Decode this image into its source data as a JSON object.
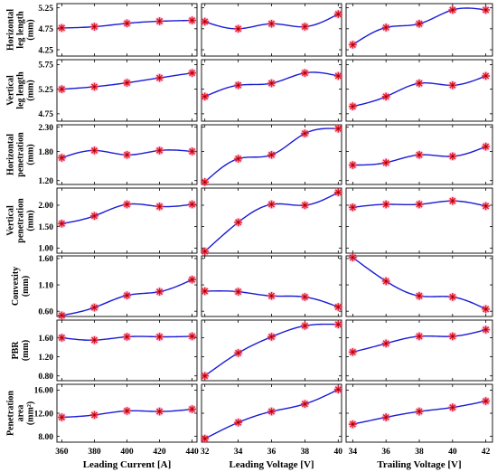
{
  "colors": {
    "curve": "#1a1ad6",
    "marker_red": "#e4232c",
    "marker_halo": "#ff66cc",
    "frame": "#000000"
  },
  "chart_data": {
    "type": "scatter",
    "layout": "grid 7 rows x 3 columns",
    "columns": [
      {
        "xlabel": "Leading Current [A]",
        "x": [
          360,
          380,
          400,
          420,
          440
        ],
        "xticks": [
          "360",
          "380",
          "400",
          "420",
          "440"
        ],
        "xlim": [
          357,
          443
        ]
      },
      {
        "xlabel": "Leading Voltage [V]",
        "x": [
          32,
          34,
          36,
          38,
          40
        ],
        "xticks": [
          "32",
          "34",
          "36",
          "38",
          "40"
        ],
        "xlim": [
          31.8,
          40.2
        ]
      },
      {
        "xlabel": "Trailing Voltage [V]",
        "x": [
          34,
          36,
          38,
          40,
          42
        ],
        "xticks": [
          "34",
          "36",
          "38",
          "40",
          "42"
        ],
        "xlim": [
          33.6,
          42.4
        ]
      }
    ],
    "rows": [
      {
        "ylabel": [
          "Horizontal",
          "leg length",
          "(mm)"
        ],
        "yticks": [
          "4.25",
          "4.75",
          "5.25"
        ],
        "ytick_values": [
          4.25,
          4.75,
          5.25
        ],
        "ylim": [
          4.1,
          5.35
        ],
        "series": [
          [
            4.77,
            4.8,
            4.88,
            4.93,
            4.95
          ],
          [
            4.92,
            4.75,
            4.87,
            4.8,
            5.1
          ],
          [
            4.37,
            4.78,
            4.87,
            5.2,
            5.2
          ]
        ]
      },
      {
        "ylabel": [
          "Vertical",
          "leg length",
          "(mm)"
        ],
        "yticks": [
          "4.75",
          "5.25",
          "5.75"
        ],
        "ytick_values": [
          4.75,
          5.25,
          5.75
        ],
        "ylim": [
          4.6,
          5.85
        ],
        "series": [
          [
            5.25,
            5.3,
            5.38,
            5.48,
            5.58
          ],
          [
            5.1,
            5.33,
            5.37,
            5.58,
            5.52
          ],
          [
            4.9,
            5.1,
            5.37,
            5.33,
            5.52
          ]
        ]
      },
      {
        "ylabel": [
          "Horizontal",
          "penetration",
          "(mm)"
        ],
        "yticks": [
          "1.20",
          "1.80",
          "2.30"
        ],
        "ytick_values": [
          1.2,
          1.8,
          2.3
        ],
        "ylim": [
          1.12,
          2.35
        ],
        "series": [
          [
            1.67,
            1.82,
            1.73,
            1.82,
            1.8
          ],
          [
            1.17,
            1.65,
            1.73,
            2.17,
            2.27
          ],
          [
            1.52,
            1.57,
            1.73,
            1.7,
            1.9
          ]
        ]
      },
      {
        "ylabel": [
          "Vertical",
          "penetration",
          "(mm)"
        ],
        "yticks": [
          "1.00",
          "1.50",
          "2.00"
        ],
        "ytick_values": [
          1.0,
          1.5,
          2.0
        ],
        "ylim": [
          0.88,
          2.4
        ],
        "series": [
          [
            1.57,
            1.75,
            2.02,
            1.97,
            2.02
          ],
          [
            0.92,
            1.6,
            2.02,
            2.0,
            2.3
          ],
          [
            1.95,
            2.02,
            2.02,
            2.1,
            1.98
          ]
        ]
      },
      {
        "ylabel": [
          "Convexity",
          "(mm)"
        ],
        "yticks": [
          "0.60",
          "1.10",
          "1.60"
        ],
        "ytick_values": [
          0.6,
          1.1,
          1.6
        ],
        "ylim": [
          0.5,
          1.65
        ],
        "series": [
          [
            0.52,
            0.67,
            0.9,
            0.97,
            1.2
          ],
          [
            0.98,
            0.97,
            0.89,
            0.87,
            0.68
          ],
          [
            1.62,
            1.17,
            0.89,
            0.87,
            0.64
          ]
        ]
      },
      {
        "ylabel": [
          "PBR",
          "(mm)"
        ],
        "yticks": [
          "0.80",
          "1.20",
          "1.60"
        ],
        "ytick_values": [
          0.8,
          1.2,
          1.6
        ],
        "ylim": [
          0.7,
          1.97
        ],
        "series": [
          [
            1.6,
            1.55,
            1.62,
            1.62,
            1.63
          ],
          [
            0.8,
            1.28,
            1.62,
            1.85,
            1.88
          ],
          [
            1.3,
            1.48,
            1.63,
            1.63,
            1.77
          ]
        ]
      },
      {
        "ylabel": [
          "Penetration",
          "area",
          "(mm²)"
        ],
        "yticks": [
          "8.00",
          "12.00",
          "16.00"
        ],
        "ytick_values": [
          8,
          12,
          16
        ],
        "ylim": [
          7.0,
          17.0
        ],
        "series": [
          [
            11.3,
            11.7,
            12.4,
            12.3,
            12.7
          ],
          [
            7.6,
            10.4,
            12.3,
            13.6,
            16.1
          ],
          [
            10.1,
            11.3,
            12.3,
            13.0,
            14.1
          ]
        ]
      }
    ]
  }
}
